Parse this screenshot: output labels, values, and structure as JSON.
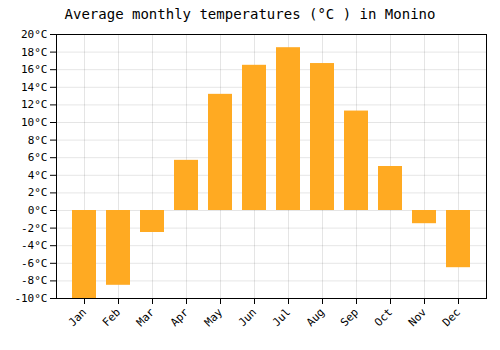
{
  "chart_data": {
    "type": "bar",
    "title": "Average monthly temperatures (°C ) in Monino",
    "categories": [
      "Jan",
      "Feb",
      "Mar",
      "Apr",
      "May",
      "Jun",
      "Jul",
      "Aug",
      "Sep",
      "Oct",
      "Nov",
      "Dec"
    ],
    "values": [
      -10,
      -8.5,
      -2.5,
      5.7,
      13.2,
      16.5,
      18.5,
      16.7,
      11.3,
      5.0,
      -1.5,
      -6.5
    ],
    "color": "#FFAA22",
    "ylim": [
      -10,
      20
    ],
    "yticks": [
      {
        "value": -10,
        "label": "-10°C"
      },
      {
        "value": -8,
        "label": "-8°C"
      },
      {
        "value": -6,
        "label": "-6°C"
      },
      {
        "value": -4,
        "label": "-4°C"
      },
      {
        "value": -2,
        "label": "-2°C"
      },
      {
        "value": 0,
        "label": "0°C"
      },
      {
        "value": 2,
        "label": "2°C"
      },
      {
        "value": 4,
        "label": "4°C"
      },
      {
        "value": 6,
        "label": "6°C"
      },
      {
        "value": 8,
        "label": "8°C"
      },
      {
        "value": 10,
        "label": "10°C"
      },
      {
        "value": 12,
        "label": "12°C"
      },
      {
        "value": 14,
        "label": "14°C"
      },
      {
        "value": 16,
        "label": "16°C"
      },
      {
        "value": 18,
        "label": "18°C"
      },
      {
        "value": 20,
        "label": "20°C"
      }
    ],
    "grid": true
  }
}
